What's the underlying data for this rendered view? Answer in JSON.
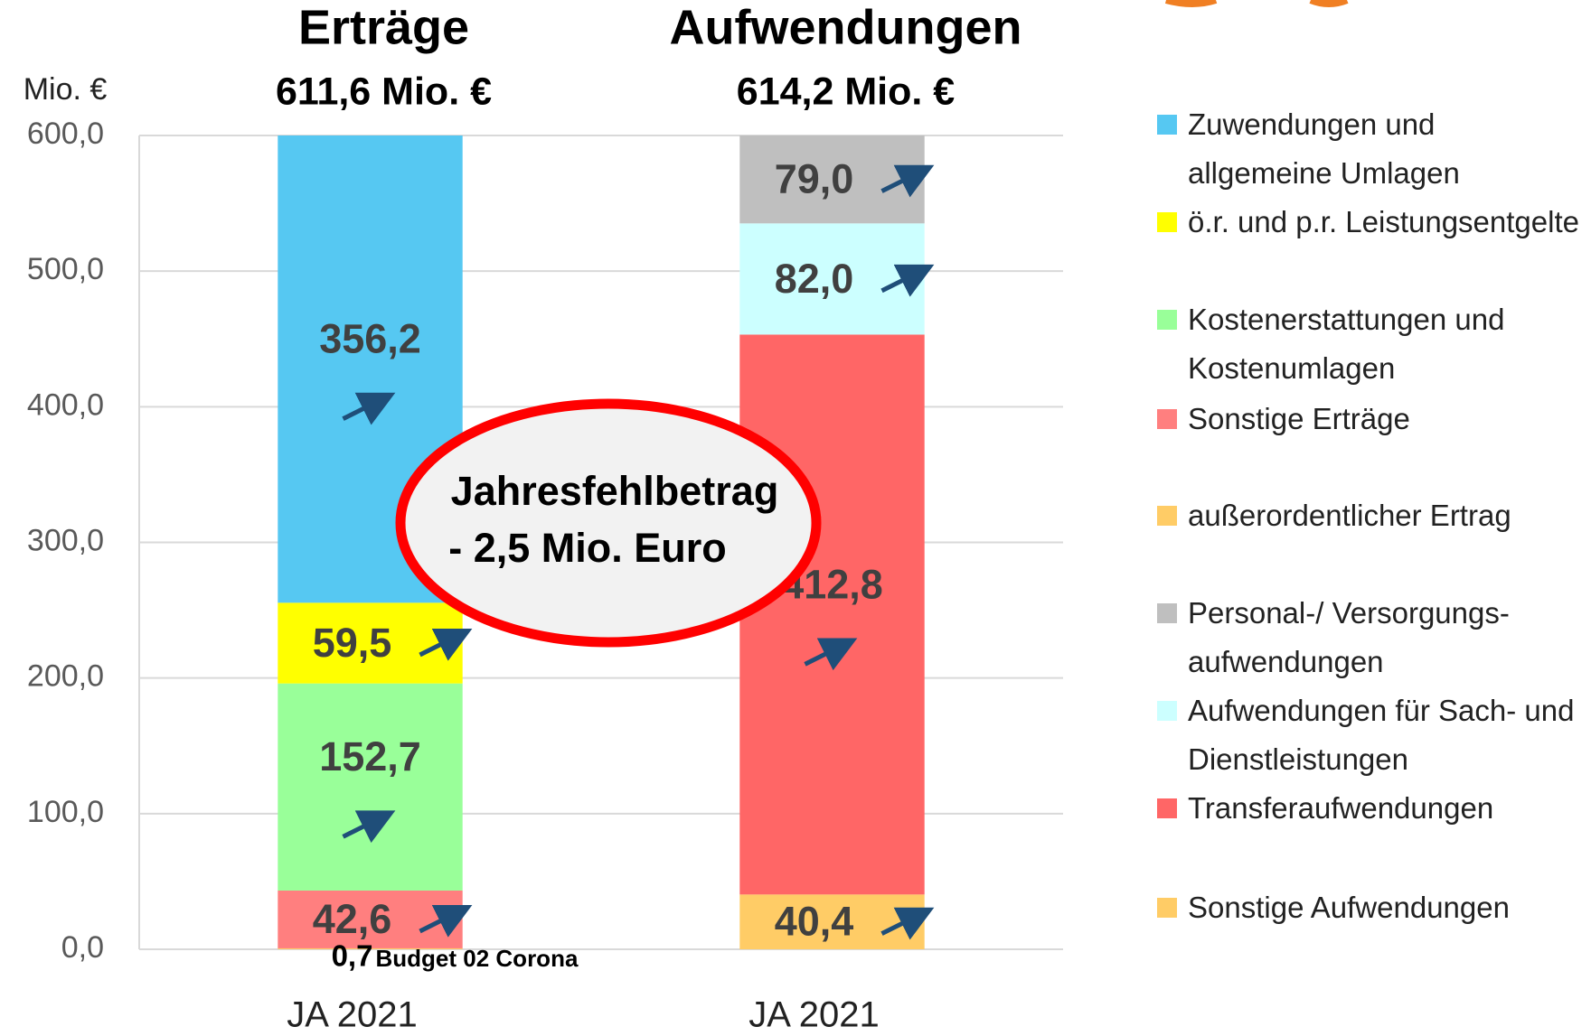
{
  "chart_data": {
    "type": "stacked-bar",
    "ylabel": "Mio. €",
    "categories": [
      "JA 2021",
      "JA 2021"
    ],
    "category_titles": [
      "Erträge",
      "Aufwendungen"
    ],
    "category_totals": [
      "611,6 Mio. €",
      "614,2 Mio. €"
    ],
    "ylim": [
      0,
      600
    ],
    "yticks": [
      {
        "value": 0,
        "label": "0,0"
      },
      {
        "value": 100,
        "label": "100,0"
      },
      {
        "value": 200,
        "label": "200,0"
      },
      {
        "value": 300,
        "label": "300,0"
      },
      {
        "value": 400,
        "label": "400,0"
      },
      {
        "value": 500,
        "label": "500,0"
      },
      {
        "value": 600,
        "label": "600,0"
      }
    ],
    "grid": true,
    "series": [
      {
        "name": "Zuwendungen und allgemeine Umlagen",
        "color": "#56c8f2",
        "values": [
          356.2,
          null
        ],
        "value_labels": [
          "356,2",
          null
        ]
      },
      {
        "name": "ö.r. und p.r. Leistungsentgelte",
        "color": "#ffff00",
        "values": [
          59.5,
          null
        ],
        "value_labels": [
          "59,5",
          null
        ]
      },
      {
        "name": "Kostenerstattungen und Kostenumlagen",
        "color": "#99ff99",
        "values": [
          152.7,
          null
        ],
        "value_labels": [
          "152,7",
          null
        ]
      },
      {
        "name": "Sonstige Erträge",
        "color": "#ff7f7f",
        "values": [
          42.6,
          null
        ],
        "value_labels": [
          "42,6",
          null
        ]
      },
      {
        "name": "außerordentlicher Ertrag",
        "color": "#ffcc66",
        "values": [
          0.7,
          null
        ],
        "value_labels": [
          "0,7",
          null
        ]
      },
      {
        "name": "Personal-/ Versorgungs-aufwendungen",
        "color": "#bfbfbf",
        "values": [
          null,
          79.0
        ],
        "value_labels": [
          null,
          "79,0"
        ]
      },
      {
        "name": "Aufwendungen für Sach- und Dienstleistungen",
        "color": "#ccffff",
        "values": [
          null,
          82.0
        ],
        "value_labels": [
          null,
          "82,0"
        ]
      },
      {
        "name": "Transferaufwendungen",
        "color": "#ff6666",
        "values": [
          null,
          412.8
        ],
        "value_labels": [
          null,
          "412,8"
        ]
      },
      {
        "name": "Sonstige Aufwendungen",
        "color": "#ffcc66",
        "values": [
          null,
          40.4
        ],
        "value_labels": [
          null,
          "40,4"
        ]
      }
    ],
    "annotations": [
      "Budget 02 Corona",
      "Jahresfehlbetrag",
      "- 2,5 Mio. Euro"
    ]
  }
}
